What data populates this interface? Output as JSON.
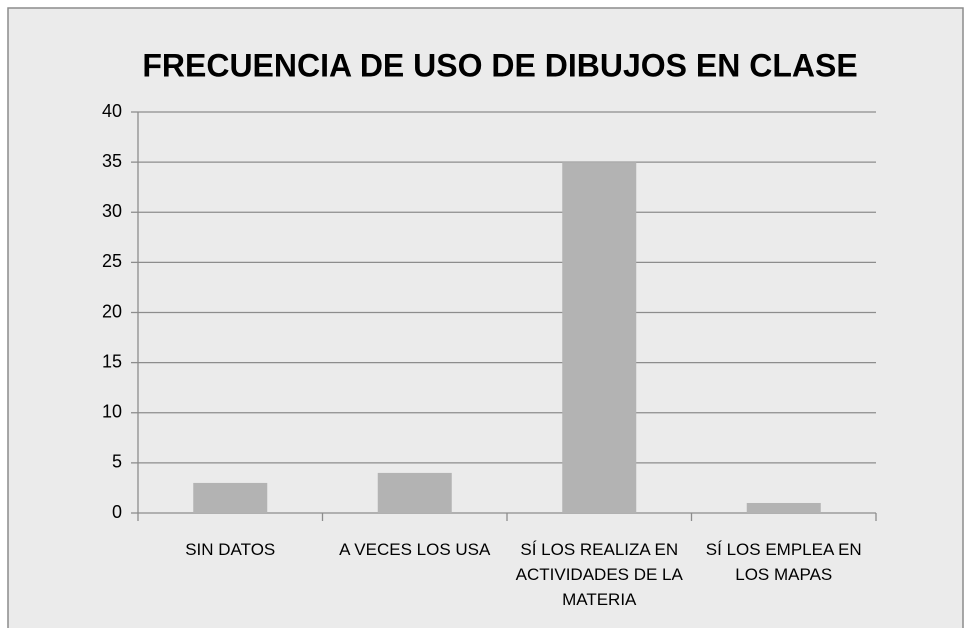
{
  "chart_data": {
    "type": "bar",
    "title": "FRECUENCIA DE USO DE DIBUJOS EN CLASE",
    "categories": [
      "SIN DATOS",
      "A VECES LOS USA",
      "SÍ LOS REALIZA EN ACTIVIDADES DE LA MATERIA",
      "SÍ LOS EMPLEA EN LOS MAPAS"
    ],
    "values": [
      3,
      4,
      35,
      1
    ],
    "color": "#b3b3b3",
    "ylim": [
      0,
      40
    ],
    "yticks": [
      0,
      5,
      10,
      15,
      20,
      25,
      30,
      35,
      40
    ],
    "grid": true
  }
}
